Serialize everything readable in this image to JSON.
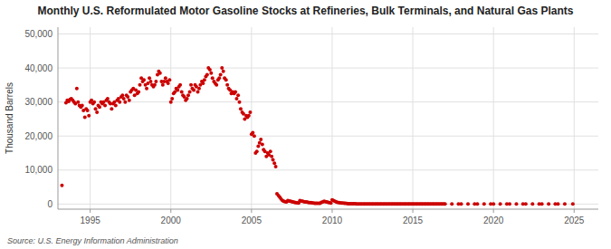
{
  "chart_data": {
    "type": "scatter",
    "title": "Monthly U.S. Reformulated Motor Gasoline Stocks at Refineries, Bulk Terminals, and Natural Gas Plants",
    "ylabel": "Thousand Barrels",
    "annotation": "Source: U.S. Energy Information Administration",
    "color": "#cc0000",
    "grid": true,
    "xlim": [
      1993.0,
      2026.5
    ],
    "ylim": [
      -1500,
      52000
    ],
    "xticks": [
      1995,
      2000,
      2005,
      2010,
      2015,
      2020,
      2025
    ],
    "yticks": [
      0,
      {
        "value": 10000,
        "label": "10,000"
      },
      {
        "value": 20000,
        "label": "20,000"
      },
      {
        "value": 30000,
        "label": "30,000"
      },
      {
        "value": 40000,
        "label": "40,000"
      },
      {
        "value": 50000,
        "label": "50,000"
      }
    ],
    "x": [
      1993.25,
      1993.5,
      1993.58,
      1993.67,
      1993.75,
      1993.83,
      1993.92,
      1994.0,
      1994.08,
      1994.17,
      1994.25,
      1994.33,
      1994.42,
      1994.5,
      1994.58,
      1994.67,
      1994.75,
      1994.83,
      1994.92,
      1995.0,
      1995.08,
      1995.17,
      1995.25,
      1995.33,
      1995.42,
      1995.5,
      1995.58,
      1995.67,
      1995.75,
      1995.83,
      1995.92,
      1996.0,
      1996.08,
      1996.17,
      1996.25,
      1996.33,
      1996.42,
      1996.5,
      1996.58,
      1996.67,
      1996.75,
      1996.83,
      1996.92,
      1997.0,
      1997.08,
      1997.17,
      1997.25,
      1997.33,
      1997.42,
      1997.5,
      1997.58,
      1997.67,
      1997.75,
      1997.83,
      1997.92,
      1998.0,
      1998.08,
      1998.17,
      1998.25,
      1998.33,
      1998.42,
      1998.5,
      1998.58,
      1998.67,
      1998.75,
      1998.83,
      1998.92,
      1999.0,
      1999.08,
      1999.17,
      1999.25,
      1999.33,
      1999.42,
      1999.5,
      1999.58,
      1999.67,
      1999.75,
      1999.83,
      1999.92,
      2000.0,
      2000.08,
      2000.17,
      2000.25,
      2000.33,
      2000.42,
      2000.5,
      2000.58,
      2000.67,
      2000.75,
      2000.83,
      2000.92,
      2001.0,
      2001.08,
      2001.17,
      2001.25,
      2001.33,
      2001.42,
      2001.5,
      2001.58,
      2001.67,
      2001.75,
      2001.83,
      2001.92,
      2002.0,
      2002.08,
      2002.17,
      2002.25,
      2002.33,
      2002.42,
      2002.5,
      2002.58,
      2002.67,
      2002.75,
      2002.83,
      2002.92,
      2003.0,
      2003.08,
      2003.17,
      2003.25,
      2003.33,
      2003.42,
      2003.5,
      2003.58,
      2003.67,
      2003.75,
      2003.83,
      2003.92,
      2004.0,
      2004.08,
      2004.17,
      2004.25,
      2004.33,
      2004.42,
      2004.5,
      2004.58,
      2004.67,
      2004.75,
      2004.83,
      2004.92,
      2005.0,
      2005.08,
      2005.17,
      2005.25,
      2005.33,
      2005.42,
      2005.5,
      2005.58,
      2005.67,
      2005.75,
      2005.83,
      2005.92,
      2006.0,
      2006.08,
      2006.17,
      2006.25,
      2006.33,
      2006.42,
      2006.5,
      2006.58,
      2006.67,
      2006.75,
      2006.83,
      2006.92,
      2007.0,
      2007.08,
      2007.17,
      2007.25,
      2007.33,
      2007.42,
      2007.5,
      2007.58,
      2007.67,
      2007.75,
      2007.83,
      2007.92,
      2008.0,
      2008.08,
      2008.17,
      2008.25,
      2008.33,
      2008.42,
      2008.5,
      2008.58,
      2008.67,
      2008.75,
      2008.83,
      2008.92,
      2009.0,
      2009.08,
      2009.17,
      2009.25,
      2009.33,
      2009.42,
      2009.5,
      2009.58,
      2009.67,
      2009.75,
      2009.83,
      2009.92,
      2010.0,
      2010.08,
      2010.17,
      2010.25,
      2010.33,
      2010.42,
      2010.5,
      2010.58,
      2010.67,
      2010.75,
      2010.83,
      2010.92,
      2011.0,
      2011.08,
      2011.17,
      2011.25,
      2011.33,
      2011.42,
      2011.5,
      2011.58,
      2011.67,
      2011.75,
      2011.83,
      2011.92,
      2012.0,
      2012.08,
      2012.17,
      2012.25,
      2012.33,
      2012.42,
      2012.5,
      2012.58,
      2012.67,
      2012.75,
      2012.83,
      2012.92,
      2013.0,
      2013.08,
      2013.17,
      2013.25,
      2013.33,
      2013.42,
      2013.5,
      2013.58,
      2013.67,
      2013.75,
      2013.83,
      2013.92,
      2014.0,
      2014.08,
      2014.17,
      2014.25,
      2014.33,
      2014.42,
      2014.5,
      2014.58,
      2014.67,
      2014.75,
      2014.83,
      2014.92,
      2015.0,
      2015.08,
      2015.17,
      2015.25,
      2015.33,
      2015.42,
      2015.5,
      2015.58,
      2015.67,
      2015.75,
      2015.83,
      2015.92,
      2016.0,
      2016.08,
      2016.17,
      2016.25,
      2016.33,
      2016.42,
      2016.5,
      2016.58,
      2016.67,
      2016.75,
      2016.83,
      2016.92,
      2017.0,
      2017.42,
      2017.83,
      2018.0,
      2018.42,
      2018.83,
      2019.0,
      2019.42,
      2019.83,
      2020.0,
      2020.42,
      2020.83,
      2021.0,
      2021.42,
      2021.83,
      2022.0,
      2022.42,
      2022.83,
      2023.0,
      2023.42,
      2023.83,
      2024.0,
      2024.42,
      2024.92
    ],
    "values": [
      5500,
      29800,
      30500,
      30200,
      30800,
      31000,
      30500,
      30000,
      29500,
      34000,
      30000,
      29000,
      28500,
      29000,
      27500,
      25500,
      28000,
      27500,
      26000,
      30000,
      30500,
      29500,
      30000,
      28000,
      27000,
      29000,
      28500,
      30000,
      29500,
      30000,
      29000,
      30500,
      31000,
      30000,
      29500,
      28000,
      29500,
      30000,
      29000,
      30500,
      31000,
      30000,
      31500,
      32000,
      31000,
      30000,
      32000,
      31500,
      30500,
      33000,
      33500,
      34000,
      32000,
      33500,
      32500,
      33000,
      35000,
      37000,
      36000,
      36500,
      35000,
      34000,
      35500,
      37000,
      36000,
      35000,
      34500,
      35000,
      36000,
      38000,
      39000,
      38500,
      36000,
      35000,
      36000,
      37000,
      36000,
      35500,
      36500,
      30000,
      31000,
      32500,
      33000,
      34000,
      33500,
      34500,
      35000,
      33000,
      32000,
      31500,
      30500,
      31000,
      32000,
      33000,
      35000,
      34000,
      33500,
      35000,
      34500,
      33000,
      34000,
      35000,
      36000,
      35500,
      36500,
      37500,
      38000,
      40000,
      39500,
      38500,
      37000,
      36000,
      35500,
      35000,
      36500,
      37000,
      38000,
      40000,
      39000,
      37000,
      36500,
      35000,
      34000,
      33500,
      32500,
      33000,
      32500,
      33000,
      31000,
      32000,
      30000,
      28000,
      27000,
      26500,
      25000,
      26000,
      25500,
      26000,
      27000,
      20500,
      21000,
      20000,
      15000,
      15500,
      17000,
      18000,
      19000,
      17500,
      16000,
      15500,
      14000,
      15000,
      14500,
      15500,
      14000,
      13000,
      12000,
      11000,
      3000,
      2500,
      2000,
      1500,
      1000,
      800,
      700,
      600,
      1000,
      900,
      800,
      700,
      600,
      500,
      400,
      350,
      300,
      1000,
      900,
      800,
      700,
      600,
      600,
      500,
      400,
      400,
      350,
      300,
      250,
      200,
      200,
      200,
      200,
      500,
      600,
      800,
      700,
      600,
      500,
      400,
      300,
      1200,
      1000,
      800,
      600,
      500,
      400,
      350,
      300,
      300,
      200,
      200,
      150,
      100,
      100,
      80,
      80,
      70,
      70,
      60,
      60,
      50,
      50,
      40,
      40,
      30,
      30,
      25,
      25,
      20,
      20,
      18,
      16,
      14,
      12,
      10,
      10,
      8,
      8,
      6,
      6,
      5,
      5,
      5,
      4,
      4,
      3,
      3,
      3,
      2,
      2,
      2,
      2,
      2,
      1,
      1,
      1,
      1,
      1,
      1,
      1,
      1,
      1,
      1,
      1,
      1,
      1,
      0,
      0,
      0,
      0,
      0,
      0,
      0,
      0,
      0,
      0,
      0,
      0,
      0,
      0,
      0,
      0,
      0,
      0,
      0,
      0,
      0,
      0,
      0,
      0,
      0,
      0,
      0,
      0,
      0,
      0,
      0,
      0,
      0,
      0,
      0,
      0,
      0,
      0,
      0,
      0,
      0,
      0
    ]
  }
}
